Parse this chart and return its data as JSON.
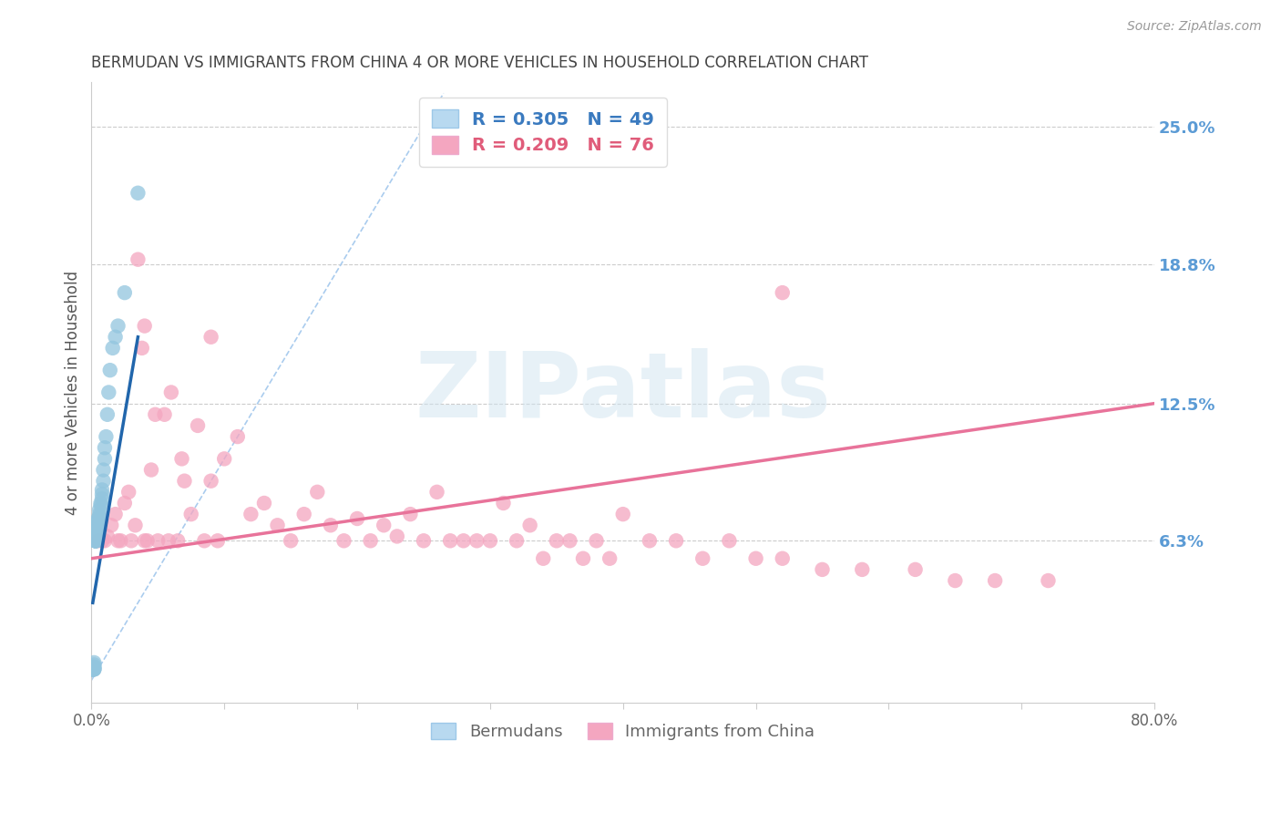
{
  "title": "BERMUDAN VS IMMIGRANTS FROM CHINA 4 OR MORE VEHICLES IN HOUSEHOLD CORRELATION CHART",
  "source": "Source: ZipAtlas.com",
  "ylabel": "4 or more Vehicles in Household",
  "right_yticks": [
    0.0,
    0.063,
    0.125,
    0.188,
    0.25
  ],
  "right_yticklabels": [
    "",
    "6.3%",
    "12.5%",
    "18.8%",
    "25.0%"
  ],
  "xlim": [
    0.0,
    0.8
  ],
  "ylim": [
    -0.01,
    0.27
  ],
  "bermudans": {
    "label": "Bermudans",
    "color": "#92c5de",
    "line_color": "#2166ac",
    "R": 0.305,
    "N": 49,
    "x": [
      0.001,
      0.001,
      0.001,
      0.001,
      0.001,
      0.002,
      0.002,
      0.002,
      0.002,
      0.002,
      0.002,
      0.002,
      0.003,
      0.003,
      0.003,
      0.003,
      0.003,
      0.003,
      0.003,
      0.004,
      0.004,
      0.004,
      0.004,
      0.004,
      0.005,
      0.005,
      0.005,
      0.005,
      0.006,
      0.006,
      0.006,
      0.007,
      0.007,
      0.008,
      0.008,
      0.008,
      0.009,
      0.009,
      0.01,
      0.01,
      0.011,
      0.012,
      0.013,
      0.014,
      0.016,
      0.018,
      0.02,
      0.025,
      0.035
    ],
    "y": [
      0.005,
      0.005,
      0.005,
      0.005,
      0.005,
      0.005,
      0.005,
      0.005,
      0.006,
      0.006,
      0.007,
      0.008,
      0.063,
      0.063,
      0.063,
      0.063,
      0.063,
      0.063,
      0.063,
      0.063,
      0.065,
      0.065,
      0.067,
      0.068,
      0.07,
      0.07,
      0.072,
      0.073,
      0.074,
      0.075,
      0.077,
      0.079,
      0.08,
      0.082,
      0.084,
      0.086,
      0.09,
      0.095,
      0.1,
      0.105,
      0.11,
      0.12,
      0.13,
      0.14,
      0.15,
      0.155,
      0.16,
      0.175,
      0.22
    ],
    "line_x": [
      0.001,
      0.035
    ],
    "line_y": [
      0.035,
      0.155
    ]
  },
  "china": {
    "label": "Immigrants from China",
    "color": "#f4a6c0",
    "line_color": "#e8739a",
    "R": 0.209,
    "N": 76,
    "x": [
      0.005,
      0.008,
      0.01,
      0.012,
      0.015,
      0.018,
      0.02,
      0.022,
      0.025,
      0.028,
      0.03,
      0.033,
      0.035,
      0.038,
      0.04,
      0.042,
      0.045,
      0.048,
      0.05,
      0.055,
      0.058,
      0.06,
      0.065,
      0.068,
      0.07,
      0.075,
      0.08,
      0.085,
      0.09,
      0.095,
      0.1,
      0.11,
      0.12,
      0.13,
      0.14,
      0.15,
      0.16,
      0.17,
      0.18,
      0.19,
      0.2,
      0.21,
      0.22,
      0.23,
      0.24,
      0.25,
      0.26,
      0.27,
      0.28,
      0.29,
      0.3,
      0.31,
      0.32,
      0.33,
      0.34,
      0.35,
      0.36,
      0.37,
      0.38,
      0.39,
      0.4,
      0.42,
      0.44,
      0.46,
      0.48,
      0.5,
      0.52,
      0.55,
      0.58,
      0.62,
      0.65,
      0.68,
      0.72,
      0.52,
      0.04,
      0.09
    ],
    "y": [
      0.063,
      0.063,
      0.063,
      0.065,
      0.07,
      0.075,
      0.063,
      0.063,
      0.08,
      0.085,
      0.063,
      0.07,
      0.19,
      0.15,
      0.063,
      0.063,
      0.095,
      0.12,
      0.063,
      0.12,
      0.063,
      0.13,
      0.063,
      0.1,
      0.09,
      0.075,
      0.115,
      0.063,
      0.09,
      0.063,
      0.1,
      0.11,
      0.075,
      0.08,
      0.07,
      0.063,
      0.075,
      0.085,
      0.07,
      0.063,
      0.073,
      0.063,
      0.07,
      0.065,
      0.075,
      0.063,
      0.085,
      0.063,
      0.063,
      0.063,
      0.063,
      0.08,
      0.063,
      0.07,
      0.055,
      0.063,
      0.063,
      0.055,
      0.063,
      0.055,
      0.075,
      0.063,
      0.063,
      0.055,
      0.063,
      0.055,
      0.055,
      0.05,
      0.05,
      0.05,
      0.045,
      0.045,
      0.045,
      0.175,
      0.16,
      0.155
    ],
    "line_x": [
      0.0,
      0.8
    ],
    "line_y": [
      0.055,
      0.125
    ]
  },
  "diagonal_line": {
    "x": [
      0.0,
      0.265
    ],
    "y": [
      0.0,
      0.265
    ],
    "color": "#aaccee",
    "style": "--"
  },
  "xticks": [
    0.0,
    0.1,
    0.2,
    0.3,
    0.4,
    0.5,
    0.6,
    0.7,
    0.8
  ],
  "xticklabels": [
    "0.0%",
    "",
    "",
    "",
    "",
    "",
    "",
    "",
    "80.0%"
  ],
  "background_color": "#ffffff",
  "grid_color": "#cccccc",
  "watermark": "ZIPatlas",
  "legend_R_blue": "R = 0.305",
  "legend_N_blue": "N = 49",
  "legend_R_pink": "R = 0.209",
  "legend_N_pink": "N = 76",
  "title_color": "#444444",
  "axis_label_color": "#555555",
  "right_tick_color": "#5b9bd5"
}
